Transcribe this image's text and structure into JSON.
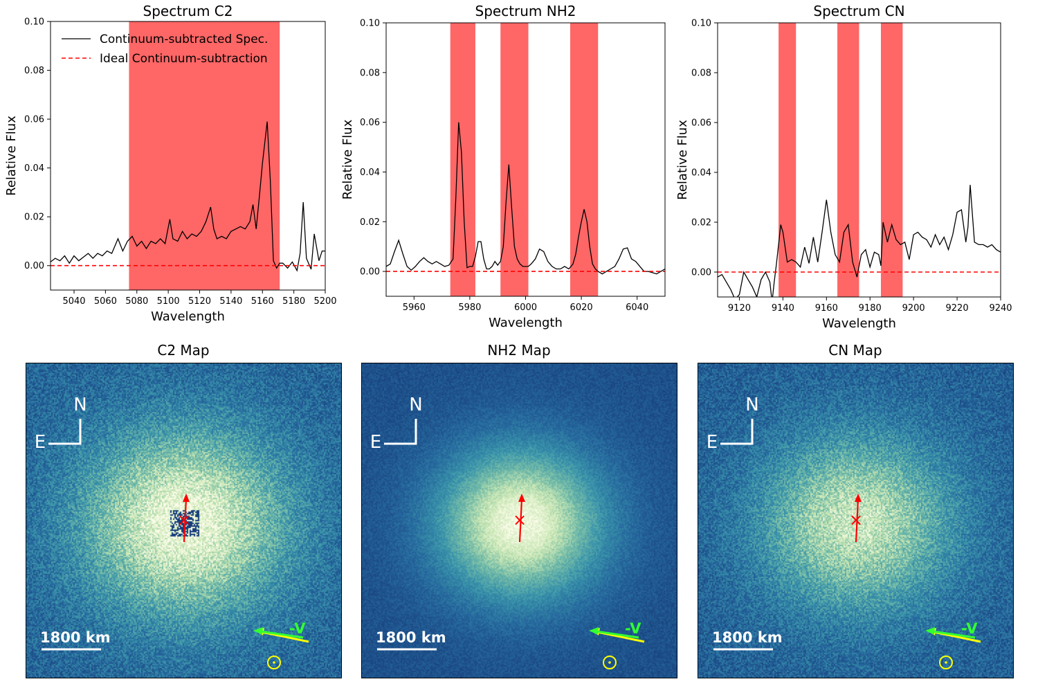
{
  "chart_data": [
    {
      "type": "line",
      "title": "Spectrum C2",
      "xlabel": "Wavelength",
      "ylabel": "Relative Flux",
      "xlim": [
        5025,
        5200
      ],
      "ylim": [
        -0.01,
        0.1
      ],
      "xticks": [
        5040,
        5060,
        5080,
        5100,
        5120,
        5140,
        5160,
        5180,
        5200
      ],
      "yticks": [
        0.0,
        0.02,
        0.04,
        0.06,
        0.08,
        0.1
      ],
      "ytick_labels": [
        "0.00",
        "0.02",
        "0.04",
        "0.06",
        "0.08",
        "0.10"
      ],
      "bands": [
        [
          5075,
          5171
        ]
      ],
      "legend": {
        "placement": "top-left",
        "entries": [
          "Continuum-subtracted Spec.",
          "Ideal Continuum-subtraction"
        ]
      },
      "series": [
        {
          "name": "Continuum-subtracted Spec.",
          "color": "#000000",
          "x": [
            5025,
            5028,
            5031,
            5034,
            5037,
            5040,
            5043,
            5046,
            5049,
            5052,
            5055,
            5058,
            5061,
            5064,
            5066,
            5068,
            5071,
            5074,
            5077,
            5080,
            5083,
            5086,
            5089,
            5092,
            5095,
            5098,
            5101,
            5103,
            5106,
            5109,
            5112,
            5115,
            5118,
            5121,
            5124,
            5127,
            5129,
            5131,
            5134,
            5137,
            5140,
            5143,
            5146,
            5149,
            5152,
            5154,
            5156,
            5158,
            5160,
            5163,
            5165,
            5167,
            5169,
            5171,
            5173,
            5176,
            5179,
            5182,
            5184,
            5186,
            5188,
            5191,
            5193,
            5196,
            5198,
            5200
          ],
          "y": [
            0.0015,
            0.003,
            0.002,
            0.004,
            0.001,
            0.004,
            0.002,
            0.0035,
            0.005,
            0.003,
            0.005,
            0.004,
            0.006,
            0.005,
            0.008,
            0.011,
            0.006,
            0.01,
            0.012,
            0.008,
            0.01,
            0.007,
            0.01,
            0.009,
            0.011,
            0.009,
            0.019,
            0.011,
            0.01,
            0.014,
            0.011,
            0.013,
            0.012,
            0.014,
            0.018,
            0.024,
            0.015,
            0.011,
            0.012,
            0.011,
            0.014,
            0.015,
            0.016,
            0.015,
            0.018,
            0.025,
            0.015,
            0.028,
            0.042,
            0.059,
            0.035,
            0.002,
            -0.001,
            0.001,
            0.001,
            -0.001,
            0.0015,
            -0.002,
            0.005,
            0.026,
            0.003,
            -0.0015,
            0.013,
            0.002,
            0.006,
            0.006
          ]
        },
        {
          "name": "Ideal Continuum-subtraction",
          "color": "#ff0000",
          "x": [
            5025,
            5200
          ],
          "y": [
            0,
            0
          ]
        }
      ]
    },
    {
      "type": "line",
      "title": "Spectrum NH2",
      "xlabel": "Wavelength",
      "ylabel": "Relative Flux",
      "xlim": [
        5950,
        6050
      ],
      "ylim": [
        -0.01,
        0.1
      ],
      "xticks": [
        5960,
        5980,
        6000,
        6020,
        6040
      ],
      "yticks": [
        0.0,
        0.02,
        0.04,
        0.06,
        0.08,
        0.1
      ],
      "ytick_labels": [
        "0.00",
        "0.02",
        "0.04",
        "0.06",
        "0.08",
        "0.10"
      ],
      "bands": [
        [
          5973,
          5982
        ],
        [
          5991,
          6001
        ],
        [
          6016,
          6026
        ]
      ],
      "series": [
        {
          "name": "Continuum-subtracted Spec.",
          "color": "#000000",
          "x": [
            5950,
            5951.5,
            5953,
            5954.5,
            5956,
            5957.5,
            5959,
            5960.5,
            5962,
            5963.5,
            5965,
            5966.5,
            5968,
            5969.5,
            5971,
            5972.5,
            5974,
            5975,
            5976,
            5977,
            5978,
            5979,
            5980,
            5981,
            5982,
            5983,
            5984,
            5985,
            5986,
            5987,
            5988,
            5989,
            5990,
            5991,
            5992,
            5993,
            5994,
            5995,
            5996,
            5997,
            5998,
            5999,
            6000,
            6001,
            6002,
            6003.5,
            6005,
            6006.5,
            6008,
            6009.5,
            6011,
            6012.5,
            6014,
            6015.5,
            6017,
            6018,
            6019,
            6020,
            6021,
            6022,
            6023,
            6024,
            6025,
            6026,
            6027.5,
            6029,
            6030.5,
            6032,
            6033.5,
            6035,
            6036.5,
            6038,
            6039.5,
            6041,
            6042.5,
            6044,
            6045.5,
            6047,
            6048.5,
            6050
          ],
          "y": [
            0.002,
            0.003,
            0.008,
            0.0125,
            0.007,
            0.002,
            0.0005,
            0.002,
            0.004,
            0.0055,
            0.004,
            0.003,
            0.004,
            0.003,
            0.002,
            0.0025,
            0.005,
            0.03,
            0.06,
            0.048,
            0.02,
            0.0015,
            0.002,
            0.002,
            0.006,
            0.012,
            0.012,
            0.005,
            0.001,
            0.001,
            0.002,
            0.004,
            0.0025,
            0.004,
            0.01,
            0.028,
            0.043,
            0.026,
            0.01,
            0.005,
            0.003,
            0.002,
            0.002,
            0.002,
            0.003,
            0.005,
            0.009,
            0.008,
            0.004,
            0.002,
            0.001,
            0.001,
            0.002,
            0.001,
            0.003,
            0.007,
            0.014,
            0.02,
            0.025,
            0.02,
            0.01,
            0.003,
            0.001,
            0.0,
            -0.001,
            0.0,
            0.001,
            0.002,
            0.005,
            0.009,
            0.0095,
            0.005,
            0.004,
            0.002,
            0.0,
            0.0,
            -0.0005,
            -0.001,
            0.0,
            0.001
          ]
        },
        {
          "name": "Ideal Continuum-subtraction",
          "color": "#ff0000",
          "x": [
            5950,
            6050
          ],
          "y": [
            0,
            0
          ]
        }
      ]
    },
    {
      "type": "line",
      "title": "Spectrum CN",
      "xlabel": "Wavelength",
      "ylabel": "Relative Flux",
      "xlim": [
        9110,
        9240
      ],
      "ylim": [
        -0.01,
        0.1
      ],
      "xticks": [
        9120,
        9140,
        9160,
        9180,
        9200,
        9220,
        9240
      ],
      "yticks": [
        0.0,
        0.02,
        0.04,
        0.06,
        0.08,
        0.1
      ],
      "ytick_labels": [
        "0.00",
        "0.02",
        "0.04",
        "0.06",
        "0.08",
        "0.10"
      ],
      "bands": [
        [
          9138,
          9146
        ],
        [
          9165,
          9175
        ],
        [
          9185,
          9195
        ]
      ],
      "series": [
        {
          "name": "Continuum-subtracted Spec.",
          "color": "#000000",
          "x": [
            9110,
            9112,
            9114,
            9116,
            9118,
            9120,
            9122,
            9124,
            9126,
            9128,
            9130,
            9132,
            9134,
            9135,
            9136,
            9137,
            9138,
            9139,
            9140,
            9142,
            9144,
            9146,
            9148,
            9150,
            9152,
            9154,
            9156,
            9158,
            9160,
            9162,
            9164,
            9166,
            9168,
            9170,
            9172,
            9174,
            9176,
            9178,
            9180,
            9182,
            9184,
            9185,
            9186,
            9188,
            9190,
            9192,
            9194,
            9196,
            9198,
            9200,
            9202,
            9204,
            9206,
            9208,
            9210,
            9212,
            9214,
            9216,
            9218,
            9220,
            9222,
            9224,
            9225,
            9226,
            9228,
            9230,
            9232,
            9234,
            9236,
            9238,
            9240
          ],
          "y": [
            -0.002,
            -0.001,
            -0.004,
            -0.007,
            -0.011,
            -0.009,
            0.0,
            -0.003,
            -0.006,
            -0.01,
            -0.003,
            0.0,
            -0.004,
            -0.012,
            -0.004,
            0.003,
            0.011,
            0.019,
            0.016,
            0.004,
            0.005,
            0.004,
            0.002,
            0.01,
            0.0035,
            0.014,
            0.004,
            0.016,
            0.029,
            0.016,
            0.007,
            0.004,
            0.016,
            0.019,
            0.004,
            -0.002,
            0.007,
            0.009,
            0.002,
            0.008,
            0.007,
            0.0025,
            0.02,
            0.012,
            0.019,
            0.013,
            0.011,
            0.012,
            0.005,
            0.015,
            0.016,
            0.014,
            0.013,
            0.01,
            0.015,
            0.011,
            0.014,
            0.009,
            0.015,
            0.024,
            0.025,
            0.012,
            0.018,
            0.035,
            0.012,
            0.011,
            0.011,
            0.01,
            0.011,
            0.009,
            0.008
          ]
        },
        {
          "name": "Ideal Continuum-subtraction",
          "color": "#ff0000",
          "x": [
            9110,
            9240
          ],
          "y": [
            0,
            0
          ]
        }
      ]
    }
  ],
  "maps": [
    {
      "title": "C2 Map",
      "north_label": "N",
      "east_label": "E",
      "scale_label": "1800 km",
      "velocity_label": "-V",
      "center_mark": "×"
    },
    {
      "title": "NH2 Map",
      "north_label": "N",
      "east_label": "E",
      "scale_label": "1800 km",
      "velocity_label": "-V",
      "center_mark": "×"
    },
    {
      "title": "CN Map",
      "north_label": "N",
      "east_label": "E",
      "scale_label": "1800 km",
      "velocity_label": "-V",
      "center_mark": "×"
    }
  ],
  "colors": {
    "band": "#ff6666",
    "spectrum": "#000000",
    "ideal": "#ff0000",
    "map_low": "#1e4e8c",
    "map_high": "#f5fbe0",
    "sun_symbol": "#ffff00",
    "velocity_arrow": "#33ff33",
    "sun_arrow": "#ffff00",
    "nucleus": "#ff0000"
  }
}
